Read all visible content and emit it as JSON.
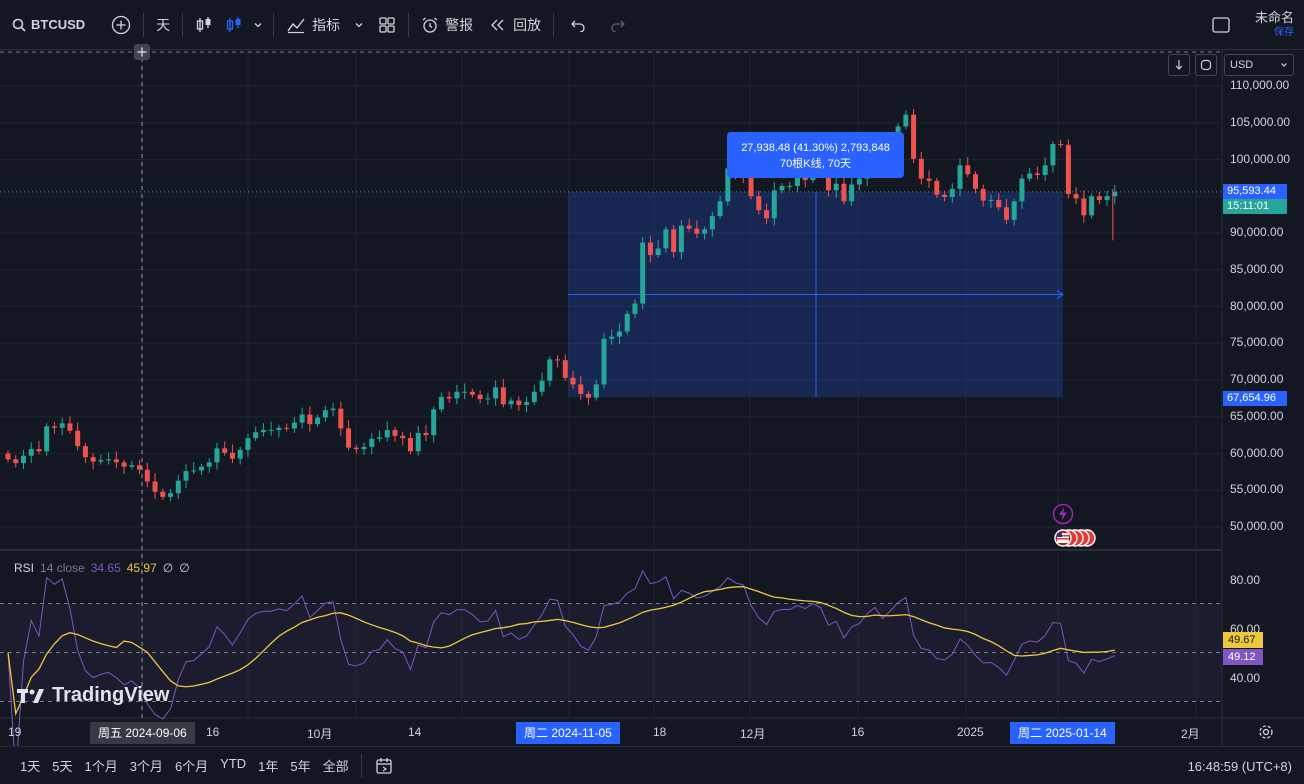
{
  "toolbar": {
    "symbol": "BTCUSD",
    "interval": "天",
    "indicators": "指标",
    "alert": "警报",
    "replay": "回放",
    "layout_title": "未命名",
    "layout_save": "保存"
  },
  "currency": "USD",
  "price_axis": {
    "ticks": [
      "110,000.00",
      "105,000.00",
      "100,000.00",
      "95,000.00",
      "90,000.00",
      "85,000.00",
      "80,000.00",
      "75,000.00",
      "70,000.00",
      "65,000.00",
      "60,000.00",
      "55,000.00",
      "50,000.00"
    ],
    "last_price": "95,593.44",
    "countdown": "15:11:01",
    "range_low": "67,654.96",
    "range_high_label": "95,593.44"
  },
  "measure": {
    "line1": "27,938.48 (41.30%) 2,793,848",
    "line2": "70根K线, 70天"
  },
  "rsi": {
    "title": "RSI",
    "params": "14 close",
    "value": "34.65",
    "ma_value": "45.97",
    "extra1": "∅",
    "extra2": "∅",
    "ticks": [
      "80.00",
      "60.00",
      "40.00"
    ],
    "tag_ma": "49.67",
    "tag_rsi": "49.12"
  },
  "time_axis": {
    "ticks": [
      "19",
      "16",
      "10月",
      "14",
      "18",
      "12月",
      "16",
      "2025",
      "2月"
    ],
    "cursor_label": "周五 2024-09-06",
    "range_start": "周二 2024-11-05",
    "range_end": "周二 2025-01-14"
  },
  "watermark": "TradingView",
  "bottom": {
    "ranges": [
      "1天",
      "5天",
      "1个月",
      "3个月",
      "6个月",
      "YTD",
      "1年",
      "5年",
      "全部"
    ],
    "clock": "16:48:59 (UTC+8)"
  },
  "colors": {
    "up": "#26a69a",
    "down": "#ef5350",
    "accent": "#2962ff",
    "rsi": "#7e57c2",
    "rsi_ma": "#f0c83c"
  },
  "chart_data": {
    "type": "candlestick",
    "start_date": "2024-08-19",
    "ylim": [
      48000,
      112000
    ],
    "closes": [
      59200,
      58700,
      59700,
      60600,
      60300,
      63700,
      63500,
      64100,
      63100,
      61000,
      59500,
      58900,
      59100,
      59200,
      58800,
      58200,
      58400,
      57800,
      56200,
      54800,
      54100,
      54600,
      56300,
      57600,
      57700,
      58200,
      58800,
      60700,
      60100,
      59300,
      60500,
      62100,
      62900,
      63200,
      63200,
      63500,
      63400,
      64200,
      65300,
      64000,
      64900,
      65900,
      66100,
      63400,
      60800,
      60600,
      60900,
      62000,
      62200,
      63200,
      62400,
      62100,
      60300,
      62800,
      62500,
      66000,
      67700,
      67500,
      68400,
      68400,
      68000,
      67400,
      67500,
      69000,
      66700,
      67200,
      66600,
      67000,
      68400,
      69900,
      72800,
      72700,
      70300,
      69400,
      68100,
      67600,
      69400,
      75600,
      75900,
      76600,
      79000,
      80400,
      88700,
      87000,
      87900,
      90500,
      87400,
      91000,
      90600,
      89900,
      90500,
      92300,
      94300,
      98800,
      98100,
      97800,
      95000,
      93100,
      92000,
      95800,
      96400,
      96400,
      97600,
      97200,
      98600,
      98100,
      95800,
      96700,
      94300,
      96600,
      97400,
      99800,
      101500,
      100000,
      102000,
      104500,
      106100,
      100100,
      97400,
      97100,
      95200,
      94900,
      96000,
      99200,
      98000,
      96000,
      94400,
      94500,
      93500,
      91800,
      94300,
      97400,
      98100,
      97900,
      99200,
      102100,
      102000,
      95300,
      94700,
      92400,
      95000,
      94500,
      95000,
      95600
    ]
  }
}
